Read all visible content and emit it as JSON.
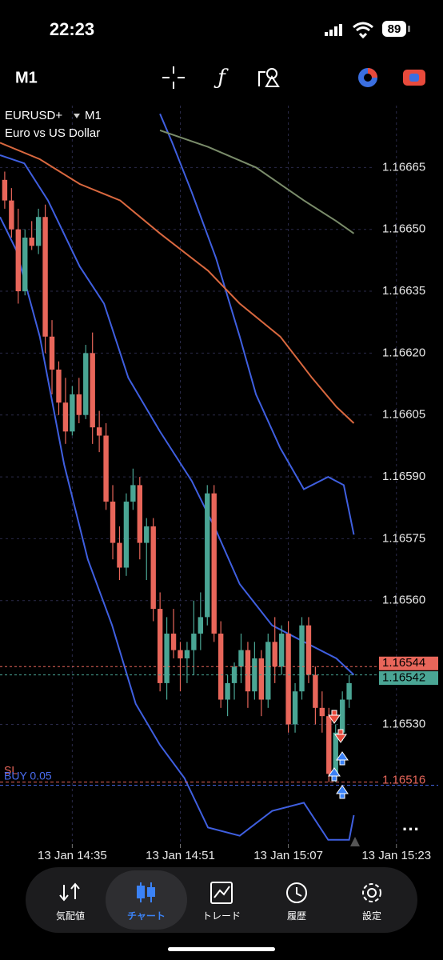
{
  "status_bar": {
    "time": "22:23",
    "battery": "89"
  },
  "toolbar": {
    "timeframe": "M1"
  },
  "chart_data": {
    "type": "candlestick",
    "symbol": "EURUSD+",
    "timeframe": "M1",
    "description": "Euro vs US Dollar",
    "up_color": "#4aa594",
    "down_color": "#e8665a",
    "grid": true,
    "xlim": [
      864.3,
      929.9
    ],
    "ylim": [
      1.16501,
      1.1668
    ],
    "xticks": [
      {
        "value": 875,
        "label": "13 Jan 14:35"
      },
      {
        "value": 891,
        "label": "13 Jan 14:51"
      },
      {
        "value": 907,
        "label": "13 Jan 15:07"
      },
      {
        "value": 923,
        "label": "13 Jan 15:23"
      }
    ],
    "yticks": [
      1.16665,
      {
        "value": 1.1665,
        "label": "1.16650"
      },
      1.16635,
      {
        "value": 1.1662,
        "label": "1.16620"
      },
      1.16605,
      {
        "value": 1.1659,
        "label": "1.16590"
      },
      1.16575,
      {
        "value": 1.1656,
        "label": "1.16560"
      },
      {
        "value": 1.1653,
        "label": "1.16530"
      }
    ],
    "x": [
      865,
      866,
      867,
      868,
      869,
      870,
      871,
      872,
      873,
      874,
      875,
      876,
      877,
      878,
      879,
      880,
      881,
      882,
      883,
      884,
      885,
      886,
      887,
      888,
      889,
      890,
      891,
      892,
      893,
      894,
      895,
      896,
      897,
      898,
      899,
      900,
      901,
      902,
      903,
      904,
      905,
      906,
      907,
      908,
      909,
      910,
      911,
      912,
      913,
      914,
      915,
      916
    ],
    "open": [
      1.16662,
      1.16657,
      1.1665,
      1.16635,
      1.16648,
      1.16646,
      1.16653,
      1.16624,
      1.16616,
      1.16608,
      1.16601,
      1.1661,
      1.16605,
      1.1662,
      1.16602,
      1.166,
      1.16584,
      1.16574,
      1.16568,
      1.16584,
      1.16588,
      1.16574,
      1.16578,
      1.16558,
      1.1654,
      1.16552,
      1.16548,
      1.16546,
      1.16548,
      1.16552,
      1.16556,
      1.16586,
      1.16552,
      1.16536,
      1.1654,
      1.16544,
      1.16548,
      1.16538,
      1.16546,
      1.16536,
      1.1655,
      1.16544,
      1.16552,
      1.1653,
      1.16538,
      1.16554,
      1.16542,
      1.16534,
      1.16532,
      1.16518,
      1.16528,
      1.16536
    ],
    "high": [
      1.16664,
      1.1666,
      1.16655,
      1.1665,
      1.16652,
      1.16655,
      1.16656,
      1.16628,
      1.16618,
      1.16614,
      1.16612,
      1.16614,
      1.16622,
      1.16625,
      1.16606,
      1.16603,
      1.16588,
      1.16578,
      1.16586,
      1.16592,
      1.1659,
      1.1658,
      1.1658,
      1.16562,
      1.16556,
      1.16558,
      1.1655,
      1.1655,
      1.1656,
      1.16562,
      1.16588,
      1.16588,
      1.16555,
      1.16542,
      1.16545,
      1.16552,
      1.1655,
      1.1655,
      1.16548,
      1.16552,
      1.16556,
      1.16554,
      1.16555,
      1.1654,
      1.16556,
      1.16556,
      1.16544,
      1.16538,
      1.16534,
      1.1653,
      1.16538,
      1.16542
    ],
    "low": [
      1.16655,
      1.16648,
      1.16632,
      1.16634,
      1.16645,
      1.16644,
      1.1662,
      1.1661,
      1.16605,
      1.16598,
      1.166,
      1.16603,
      1.16604,
      1.16598,
      1.16596,
      1.16582,
      1.1657,
      1.16565,
      1.16566,
      1.16582,
      1.1657,
      1.16565,
      1.16555,
      1.16538,
      1.16536,
      1.16546,
      1.16538,
      1.1654,
      1.16542,
      1.16548,
      1.16554,
      1.1655,
      1.16534,
      1.16532,
      1.16536,
      1.1654,
      1.16534,
      1.16536,
      1.16532,
      1.16534,
      1.1654,
      1.16542,
      1.16528,
      1.16528,
      1.16536,
      1.1654,
      1.1653,
      1.16528,
      1.16516,
      1.16516,
      1.16526,
      1.16534
    ],
    "close": [
      1.16657,
      1.1665,
      1.16635,
      1.16648,
      1.16646,
      1.16653,
      1.16624,
      1.16616,
      1.16608,
      1.16601,
      1.1661,
      1.16605,
      1.1662,
      1.16602,
      1.166,
      1.16584,
      1.16574,
      1.16568,
      1.16584,
      1.16588,
      1.16574,
      1.16578,
      1.16558,
      1.1654,
      1.16552,
      1.16548,
      1.16546,
      1.16548,
      1.16552,
      1.16556,
      1.16586,
      1.16552,
      1.16536,
      1.1654,
      1.16544,
      1.16548,
      1.16538,
      1.16546,
      1.16536,
      1.1655,
      1.16544,
      1.16552,
      1.1653,
      1.16538,
      1.16554,
      1.16542,
      1.16534,
      1.16532,
      1.16518,
      1.16528,
      1.16536,
      1.1654
    ],
    "lines": [
      {
        "color": "#3f5fe0",
        "x": [
          888.0,
          889.8,
          892.7,
          896.3,
          899.8,
          902.2,
          905.8,
          909.3,
          912.9,
          915.2,
          916.7
        ],
        "values": [
          1.16678,
          1.16671,
          1.16659,
          1.16643,
          1.16624,
          1.1661,
          1.16597,
          1.16587,
          1.1659,
          1.16588,
          1.16576
        ]
      },
      {
        "color": "#3f5fe0",
        "x": [
          864.3,
          867.9,
          871.4,
          876.1,
          879.7,
          883.3,
          888.0,
          892.7,
          896.3,
          899.8,
          904.6,
          909.3,
          914.1,
          916.7
        ],
        "values": [
          1.16668,
          1.16666,
          1.16657,
          1.16641,
          1.16632,
          1.16614,
          1.16601,
          1.16589,
          1.16577,
          1.16564,
          1.16554,
          1.1655,
          1.16546,
          1.16542
        ]
      },
      {
        "color": "#3f5fe0",
        "x": [
          864.3,
          866.7,
          870.2,
          873.8,
          877.3,
          880.9,
          884.4,
          888.0,
          891.6,
          895.1,
          899.8,
          904.6,
          909.3,
          912.9,
          916.0,
          916.7
        ],
        "values": [
          1.16653,
          1.16645,
          1.16624,
          1.16593,
          1.1657,
          1.16554,
          1.16535,
          1.16525,
          1.16517,
          1.16505,
          1.16503,
          1.16509,
          1.16511,
          1.16502,
          1.16502,
          1.16508
        ]
      },
      {
        "color": "#d9683f",
        "x": [
          864.3,
          870.2,
          876.1,
          882.1,
          888.0,
          895.1,
          899.8,
          905.8,
          910.5,
          914.1,
          916.7
        ],
        "values": [
          1.16671,
          1.16667,
          1.16661,
          1.16657,
          1.16649,
          1.1664,
          1.16632,
          1.16624,
          1.16614,
          1.16607,
          1.16603
        ]
      },
      {
        "color": "#7a8c6a",
        "x": [
          888.0,
          895.1,
          902.2,
          909.3,
          914.1,
          916.7
        ],
        "values": [
          1.16674,
          1.1667,
          1.16665,
          1.16657,
          1.16652,
          1.16649
        ]
      }
    ],
    "price_lines": [
      {
        "value": 1.16544,
        "color": "#e8665a"
      },
      {
        "value": 1.16542,
        "color": "#4aa594"
      }
    ],
    "sl": {
      "label": "SL",
      "value": 1.16516,
      "color": "#e8665a"
    },
    "position": {
      "label": "BUY 0.05",
      "color": "#4a6cf0"
    }
  },
  "nav": {
    "tabs": [
      "気配値",
      "チャート",
      "トレード",
      "履歴",
      "設定"
    ],
    "active": 1
  }
}
